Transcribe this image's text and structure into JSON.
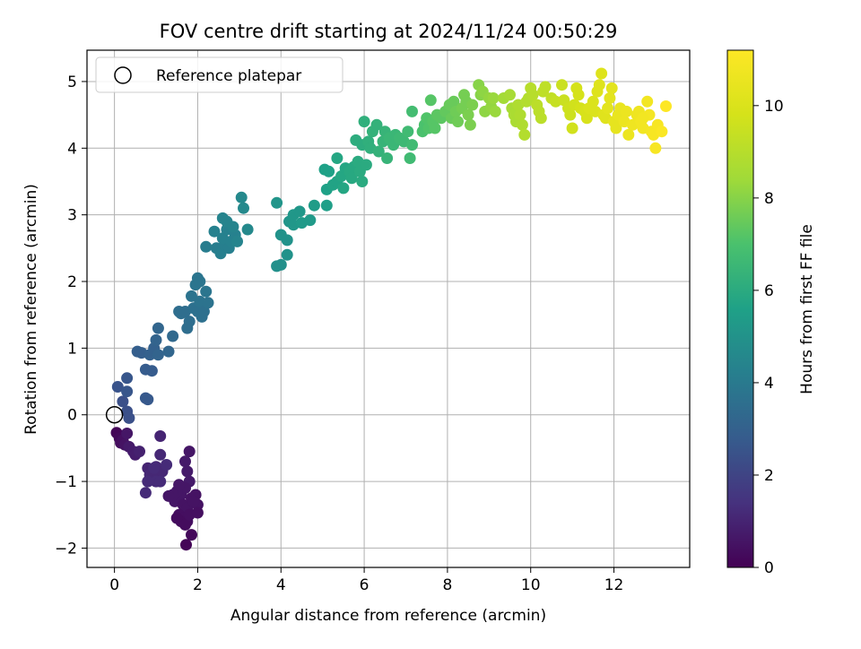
{
  "chart_data": {
    "type": "scatter",
    "title": "FOV centre drift starting at 2024/11/24 00:50:29",
    "xlabel": "Angular distance from reference (arcmin)",
    "ylabel": "Rotation from reference (arcmin)",
    "xlim": [
      -0.66,
      13.82
    ],
    "ylim": [
      -2.29,
      5.47
    ],
    "xticks": [
      0,
      2,
      4,
      6,
      8,
      10,
      12
    ],
    "yticks": [
      -2,
      -1,
      0,
      1,
      2,
      3,
      4,
      5
    ],
    "xtick_labels": [
      "0",
      "2",
      "4",
      "6",
      "8",
      "10",
      "12"
    ],
    "ytick_labels": [
      "−2",
      "−1",
      "0",
      "1",
      "2",
      "3",
      "4",
      "5"
    ],
    "grid": true,
    "colormap": "viridis",
    "colorbar": {
      "label": "Hours from first FF file",
      "range": [
        0,
        11.2
      ],
      "ticks": [
        0,
        2,
        4,
        6,
        8,
        10
      ],
      "tick_labels": [
        "0",
        "2",
        "4",
        "6",
        "8",
        "10"
      ]
    },
    "legend": {
      "placement": "top-left",
      "entries": [
        "Reference platepar"
      ]
    },
    "reference_point": {
      "x": 0,
      "y": 0
    },
    "points": [
      [
        0.05,
        -0.27,
        0.1
      ],
      [
        0.12,
        -0.35,
        0.2
      ],
      [
        0.15,
        -0.42,
        0.3
      ],
      [
        0.2,
        -0.38,
        0.4
      ],
      [
        0.25,
        -0.45,
        0.5
      ],
      [
        0.3,
        -0.28,
        0.6
      ],
      [
        0.35,
        -0.48,
        0.7
      ],
      [
        0.45,
        -0.55,
        0.75
      ],
      [
        0.5,
        -0.6,
        0.8
      ],
      [
        0.6,
        -0.55,
        0.9
      ],
      [
        1.1,
        -0.32,
        1.0
      ],
      [
        0.8,
        -0.8,
        1.0
      ],
      [
        0.85,
        -0.9,
        1.1
      ],
      [
        0.9,
        -0.95,
        1.1
      ],
      [
        1.0,
        -0.78,
        1.1
      ],
      [
        1.05,
        -0.88,
        1.1
      ],
      [
        1.1,
        -0.6,
        1.1
      ],
      [
        1.15,
        -0.85,
        1.1
      ],
      [
        1.25,
        -0.75,
        1.2
      ],
      [
        1.0,
        -1.0,
        1.2
      ],
      [
        0.95,
        -0.8,
        1.2
      ],
      [
        0.8,
        -1.0,
        1.2
      ],
      [
        0.75,
        -1.17,
        1.2
      ],
      [
        1.1,
        -1.0,
        1.2
      ],
      [
        1.8,
        -0.55,
        0.6
      ],
      [
        1.7,
        -0.7,
        0.7
      ],
      [
        1.75,
        -0.85,
        0.7
      ],
      [
        1.8,
        -1.0,
        0.7
      ],
      [
        1.6,
        -1.2,
        0.6
      ],
      [
        1.7,
        -1.1,
        0.6
      ],
      [
        1.5,
        -1.15,
        0.6
      ],
      [
        1.45,
        -1.3,
        0.6
      ],
      [
        1.65,
        -1.35,
        0.5
      ],
      [
        1.75,
        -1.4,
        0.5
      ],
      [
        1.85,
        -1.25,
        0.5
      ],
      [
        1.95,
        -1.2,
        0.5
      ],
      [
        2.0,
        -1.35,
        0.5
      ],
      [
        1.55,
        -1.5,
        0.4
      ],
      [
        1.65,
        -1.55,
        0.4
      ],
      [
        1.75,
        -1.6,
        0.4
      ],
      [
        1.6,
        -1.6,
        0.3
      ],
      [
        1.5,
        -1.55,
        0.3
      ],
      [
        1.7,
        -1.65,
        0.3
      ],
      [
        1.8,
        -1.5,
        0.4
      ],
      [
        2.0,
        -1.47,
        0.4
      ],
      [
        1.85,
        -1.8,
        0.2
      ],
      [
        1.72,
        -1.95,
        0.1
      ],
      [
        1.4,
        -1.2,
        0.6
      ],
      [
        1.3,
        -1.22,
        0.6
      ],
      [
        1.9,
        -1.3,
        0.5
      ],
      [
        1.55,
        -1.05,
        0.6
      ],
      [
        0.3,
        0.05,
        2.4
      ],
      [
        0.35,
        -0.05,
        2.4
      ],
      [
        0.2,
        0.2,
        2.4
      ],
      [
        0.08,
        0.42,
        2.5
      ],
      [
        0.3,
        0.35,
        2.6
      ],
      [
        0.3,
        0.55,
        2.6
      ],
      [
        0.75,
        0.25,
        2.7
      ],
      [
        0.8,
        0.23,
        2.7
      ],
      [
        0.75,
        0.68,
        2.8
      ],
      [
        0.9,
        0.66,
        2.8
      ],
      [
        0.55,
        0.95,
        2.9
      ],
      [
        0.65,
        0.93,
        2.9
      ],
      [
        0.85,
        0.9,
        3.0
      ],
      [
        0.95,
        1.0,
        3.0
      ],
      [
        1.05,
        0.9,
        3.1
      ],
      [
        1.0,
        1.12,
        3.1
      ],
      [
        1.05,
        1.3,
        3.2
      ],
      [
        1.3,
        0.95,
        3.2
      ],
      [
        1.4,
        1.18,
        3.3
      ],
      [
        1.55,
        1.55,
        3.5
      ],
      [
        1.6,
        1.52,
        3.5
      ],
      [
        1.7,
        1.55,
        3.5
      ],
      [
        1.8,
        1.4,
        3.5
      ],
      [
        1.75,
        1.3,
        3.5
      ],
      [
        1.9,
        1.6,
        3.6
      ],
      [
        2.0,
        1.55,
        3.6
      ],
      [
        2.1,
        1.47,
        3.6
      ],
      [
        1.85,
        1.78,
        3.7
      ],
      [
        2.05,
        1.7,
        3.7
      ],
      [
        2.15,
        1.65,
        3.7
      ],
      [
        2.2,
        1.85,
        3.8
      ],
      [
        1.95,
        1.95,
        3.8
      ],
      [
        2.0,
        2.05,
        3.8
      ],
      [
        2.05,
        2.0,
        3.8
      ],
      [
        2.15,
        1.55,
        3.6
      ],
      [
        2.25,
        1.68,
        3.7
      ],
      [
        2.2,
        2.52,
        4.1
      ],
      [
        2.45,
        2.5,
        4.1
      ],
      [
        2.55,
        2.42,
        4.2
      ],
      [
        2.65,
        2.55,
        4.2
      ],
      [
        2.75,
        2.5,
        4.2
      ],
      [
        2.6,
        2.65,
        4.3
      ],
      [
        2.7,
        2.78,
        4.3
      ],
      [
        2.8,
        2.6,
        4.3
      ],
      [
        2.9,
        2.7,
        4.3
      ],
      [
        2.6,
        2.95,
        4.4
      ],
      [
        2.7,
        2.9,
        4.4
      ],
      [
        2.85,
        2.82,
        4.4
      ],
      [
        2.4,
        2.75,
        4.3
      ],
      [
        3.05,
        3.26,
        4.6
      ],
      [
        3.1,
        3.1,
        4.6
      ],
      [
        3.2,
        2.78,
        4.6
      ],
      [
        2.95,
        2.6,
        4.4
      ],
      [
        3.9,
        2.23,
        4.9
      ],
      [
        4.0,
        2.25,
        4.9
      ],
      [
        4.15,
        2.4,
        5.0
      ],
      [
        4.0,
        2.7,
        5.0
      ],
      [
        4.15,
        2.62,
        5.0
      ],
      [
        4.2,
        2.9,
        5.1
      ],
      [
        3.9,
        3.18,
        5.1
      ],
      [
        4.3,
        3.0,
        5.2
      ],
      [
        4.45,
        3.05,
        5.2
      ],
      [
        4.3,
        2.85,
        5.2
      ],
      [
        4.5,
        2.88,
        5.3
      ],
      [
        4.7,
        2.92,
        5.3
      ],
      [
        4.8,
        3.14,
        5.4
      ],
      [
        5.1,
        3.14,
        5.5
      ],
      [
        5.05,
        3.68,
        5.6
      ],
      [
        5.15,
        3.65,
        5.6
      ],
      [
        5.1,
        3.38,
        5.6
      ],
      [
        5.25,
        3.45,
        5.7
      ],
      [
        5.35,
        3.5,
        5.7
      ],
      [
        5.45,
        3.58,
        5.8
      ],
      [
        5.5,
        3.4,
        5.8
      ],
      [
        5.55,
        3.7,
        5.8
      ],
      [
        5.35,
        3.85,
        5.8
      ],
      [
        5.65,
        3.65,
        5.9
      ],
      [
        5.7,
        3.55,
        5.9
      ],
      [
        5.75,
        3.72,
        5.9
      ],
      [
        5.85,
        3.8,
        6.0
      ],
      [
        5.95,
        3.5,
        6.0
      ],
      [
        5.9,
        3.65,
        6.0
      ],
      [
        6.05,
        3.75,
        6.0
      ],
      [
        5.8,
        4.12,
        6.1
      ],
      [
        5.95,
        4.05,
        6.1
      ],
      [
        6.0,
        4.4,
        6.2
      ],
      [
        6.1,
        4.1,
        6.2
      ],
      [
        6.15,
        4.0,
        6.2
      ],
      [
        6.2,
        4.25,
        6.3
      ],
      [
        6.3,
        4.35,
        6.3
      ],
      [
        6.35,
        3.95,
        6.3
      ],
      [
        6.45,
        4.1,
        6.4
      ],
      [
        6.5,
        4.25,
        6.4
      ],
      [
        6.55,
        3.85,
        6.4
      ],
      [
        6.6,
        4.15,
        6.5
      ],
      [
        6.7,
        4.05,
        6.5
      ],
      [
        6.75,
        4.2,
        6.5
      ],
      [
        6.85,
        4.15,
        6.6
      ],
      [
        6.95,
        4.1,
        6.6
      ],
      [
        7.05,
        4.25,
        6.7
      ],
      [
        7.1,
        3.85,
        6.7
      ],
      [
        7.15,
        4.05,
        6.7
      ],
      [
        7.15,
        4.55,
        6.8
      ],
      [
        7.4,
        4.25,
        7.0
      ],
      [
        7.45,
        4.35,
        7.0
      ],
      [
        7.55,
        4.3,
        7.1
      ],
      [
        7.5,
        4.45,
        7.1
      ],
      [
        7.6,
        4.72,
        7.2
      ],
      [
        7.65,
        4.4,
        7.2
      ],
      [
        7.7,
        4.3,
        7.2
      ],
      [
        7.75,
        4.5,
        7.3
      ],
      [
        7.85,
        4.45,
        7.3
      ],
      [
        7.95,
        4.55,
        7.4
      ],
      [
        8.05,
        4.65,
        7.5
      ],
      [
        8.1,
        4.45,
        7.5
      ],
      [
        8.15,
        4.7,
        7.5
      ],
      [
        8.2,
        4.55,
        7.6
      ],
      [
        8.25,
        4.4,
        7.6
      ],
      [
        8.35,
        4.6,
        7.7
      ],
      [
        8.4,
        4.8,
        7.7
      ],
      [
        8.45,
        4.7,
        7.7
      ],
      [
        8.5,
        4.5,
        7.8
      ],
      [
        8.55,
        4.35,
        7.8
      ],
      [
        8.6,
        4.65,
        7.8
      ],
      [
        8.75,
        4.95,
        8.0
      ],
      [
        8.8,
        4.8,
        8.0
      ],
      [
        8.85,
        4.85,
        8.1
      ],
      [
        8.9,
        4.55,
        8.1
      ],
      [
        9.0,
        4.75,
        8.2
      ],
      [
        9.05,
        4.62,
        8.2
      ],
      [
        9.1,
        4.75,
        8.3
      ],
      [
        9.15,
        4.55,
        8.3
      ],
      [
        9.35,
        4.75,
        8.5
      ],
      [
        9.5,
        4.8,
        8.6
      ],
      [
        9.55,
        4.6,
        8.6
      ],
      [
        9.6,
        4.5,
        8.7
      ],
      [
        9.65,
        4.4,
        8.7
      ],
      [
        9.7,
        4.65,
        8.8
      ],
      [
        9.75,
        4.5,
        8.8
      ],
      [
        9.8,
        4.35,
        8.8
      ],
      [
        9.85,
        4.2,
        8.9
      ],
      [
        9.9,
        4.7,
        8.9
      ],
      [
        9.95,
        4.75,
        8.9
      ],
      [
        10.0,
        4.9,
        9.0
      ],
      [
        10.05,
        4.8,
        9.0
      ],
      [
        10.15,
        4.65,
        9.1
      ],
      [
        10.2,
        4.55,
        9.1
      ],
      [
        10.25,
        4.45,
        9.1
      ],
      [
        10.3,
        4.85,
        9.2
      ],
      [
        10.35,
        4.92,
        9.2
      ],
      [
        10.5,
        4.75,
        9.3
      ],
      [
        10.6,
        4.7,
        9.4
      ],
      [
        10.75,
        4.95,
        9.5
      ],
      [
        10.8,
        4.72,
        9.5
      ],
      [
        10.9,
        4.6,
        9.6
      ],
      [
        10.95,
        4.5,
        9.6
      ],
      [
        11.0,
        4.3,
        9.7
      ],
      [
        11.05,
        4.65,
        9.7
      ],
      [
        11.1,
        4.9,
        9.8
      ],
      [
        11.15,
        4.8,
        9.8
      ],
      [
        11.2,
        4.6,
        9.8
      ],
      [
        11.3,
        4.55,
        9.9
      ],
      [
        11.35,
        4.45,
        9.9
      ],
      [
        11.4,
        4.6,
        10.0
      ],
      [
        11.5,
        4.7,
        10.0
      ],
      [
        11.55,
        4.55,
        10.0
      ],
      [
        11.6,
        4.85,
        10.1
      ],
      [
        11.65,
        4.95,
        10.1
      ],
      [
        11.7,
        5.12,
        10.1
      ],
      [
        11.75,
        4.5,
        10.2
      ],
      [
        11.8,
        4.45,
        10.2
      ],
      [
        11.85,
        4.6,
        10.3
      ],
      [
        11.9,
        4.75,
        10.3
      ],
      [
        11.95,
        4.9,
        10.3
      ],
      [
        12.0,
        4.4,
        10.4
      ],
      [
        12.05,
        4.3,
        10.4
      ],
      [
        12.1,
        4.5,
        10.5
      ],
      [
        12.15,
        4.6,
        10.5
      ],
      [
        12.2,
        4.5,
        10.5
      ],
      [
        12.25,
        4.4,
        10.6
      ],
      [
        12.3,
        4.55,
        10.6
      ],
      [
        12.35,
        4.2,
        10.6
      ],
      [
        12.45,
        4.35,
        10.7
      ],
      [
        12.55,
        4.5,
        10.7
      ],
      [
        12.6,
        4.55,
        10.7
      ],
      [
        12.65,
        4.4,
        10.8
      ],
      [
        12.7,
        4.3,
        10.8
      ],
      [
        12.8,
        4.7,
        10.8
      ],
      [
        12.85,
        4.5,
        10.9
      ],
      [
        12.9,
        4.25,
        10.9
      ],
      [
        12.95,
        4.2,
        11.0
      ],
      [
        13.0,
        4.0,
        11.0
      ],
      [
        13.05,
        4.35,
        11.0
      ],
      [
        13.15,
        4.25,
        11.1
      ],
      [
        13.25,
        4.63,
        11.2
      ],
      [
        12.7,
        4.45,
        10.8
      ]
    ]
  }
}
